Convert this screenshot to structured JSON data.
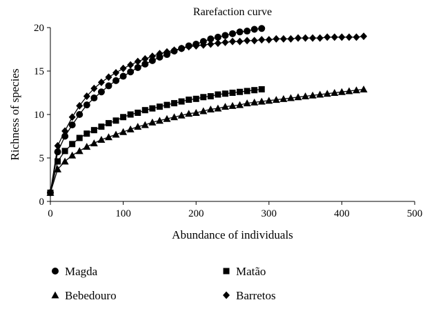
{
  "chart_data": {
    "type": "line",
    "title": "Rarefaction curve",
    "xlabel": "Abundance of individuals",
    "ylabel": "Richness of species",
    "xlim": [
      0,
      500
    ],
    "ylim": [
      0,
      20
    ],
    "xticks": [
      0,
      100,
      200,
      300,
      400,
      500
    ],
    "yticks": [
      0,
      5,
      10,
      15,
      20
    ],
    "grid": false,
    "legend_position": "bottom",
    "series": [
      {
        "name": "Magda",
        "marker": "circle",
        "x": [
          0,
          10,
          20,
          30,
          40,
          50,
          60,
          70,
          80,
          90,
          100,
          110,
          120,
          130,
          140,
          150,
          160,
          170,
          180,
          190,
          200,
          210,
          220,
          230,
          240,
          250,
          260,
          270,
          280,
          290
        ],
        "y": [
          1,
          5.7,
          7.5,
          8.8,
          10,
          11.1,
          11.9,
          12.6,
          13.3,
          13.9,
          14.4,
          14.9,
          15.4,
          15.8,
          16.2,
          16.6,
          16.9,
          17.3,
          17.6,
          17.9,
          18.1,
          18.4,
          18.7,
          18.9,
          19.1,
          19.3,
          19.5,
          19.6,
          19.8,
          19.9
        ]
      },
      {
        "name": "Matão",
        "marker": "square",
        "x": [
          0,
          10,
          20,
          30,
          40,
          50,
          60,
          70,
          80,
          90,
          100,
          110,
          120,
          130,
          140,
          150,
          160,
          170,
          180,
          190,
          200,
          210,
          220,
          230,
          240,
          250,
          260,
          270,
          280,
          290
        ],
        "y": [
          1,
          4.6,
          5.8,
          6.6,
          7.3,
          7.8,
          8.2,
          8.6,
          9.0,
          9.3,
          9.7,
          10.0,
          10.2,
          10.5,
          10.7,
          10.9,
          11.1,
          11.3,
          11.5,
          11.7,
          11.8,
          12.0,
          12.1,
          12.3,
          12.4,
          12.5,
          12.6,
          12.7,
          12.8,
          12.9
        ]
      },
      {
        "name": "Bebedouro",
        "marker": "triangle",
        "x": [
          0,
          10,
          20,
          30,
          40,
          50,
          60,
          70,
          80,
          90,
          100,
          110,
          120,
          130,
          140,
          150,
          160,
          170,
          180,
          190,
          200,
          210,
          220,
          230,
          240,
          250,
          260,
          270,
          280,
          290,
          300,
          310,
          320,
          330,
          340,
          350,
          360,
          370,
          380,
          390,
          400,
          410,
          420,
          430
        ],
        "y": [
          1,
          3.7,
          4.6,
          5.3,
          5.8,
          6.3,
          6.7,
          7.1,
          7.4,
          7.7,
          8.0,
          8.3,
          8.6,
          8.8,
          9.1,
          9.3,
          9.5,
          9.7,
          9.9,
          10.1,
          10.2,
          10.4,
          10.6,
          10.7,
          10.9,
          11.0,
          11.1,
          11.3,
          11.4,
          11.5,
          11.6,
          11.7,
          11.8,
          11.9,
          12.0,
          12.1,
          12.2,
          12.3,
          12.4,
          12.5,
          12.6,
          12.7,
          12.8,
          12.9
        ]
      },
      {
        "name": "Barretos",
        "marker": "diamond",
        "x": [
          0,
          10,
          20,
          30,
          40,
          50,
          60,
          70,
          80,
          90,
          100,
          110,
          120,
          130,
          140,
          150,
          160,
          170,
          180,
          190,
          200,
          210,
          220,
          230,
          240,
          250,
          260,
          270,
          280,
          290,
          300,
          310,
          320,
          330,
          340,
          350,
          360,
          370,
          380,
          390,
          400,
          410,
          420,
          430
        ],
        "y": [
          1,
          6.4,
          8.1,
          9.7,
          11.0,
          12.1,
          13.0,
          13.7,
          14.3,
          14.8,
          15.3,
          15.7,
          16.1,
          16.4,
          16.7,
          17.0,
          17.2,
          17.4,
          17.6,
          17.8,
          17.9,
          18.0,
          18.1,
          18.2,
          18.3,
          18.4,
          18.4,
          18.5,
          18.5,
          18.6,
          18.6,
          18.7,
          18.7,
          18.7,
          18.8,
          18.8,
          18.8,
          18.8,
          18.9,
          18.9,
          18.9,
          18.9,
          18.9,
          19.0
        ]
      }
    ]
  },
  "colors": {
    "ink": "#000000",
    "background": "#ffffff"
  }
}
